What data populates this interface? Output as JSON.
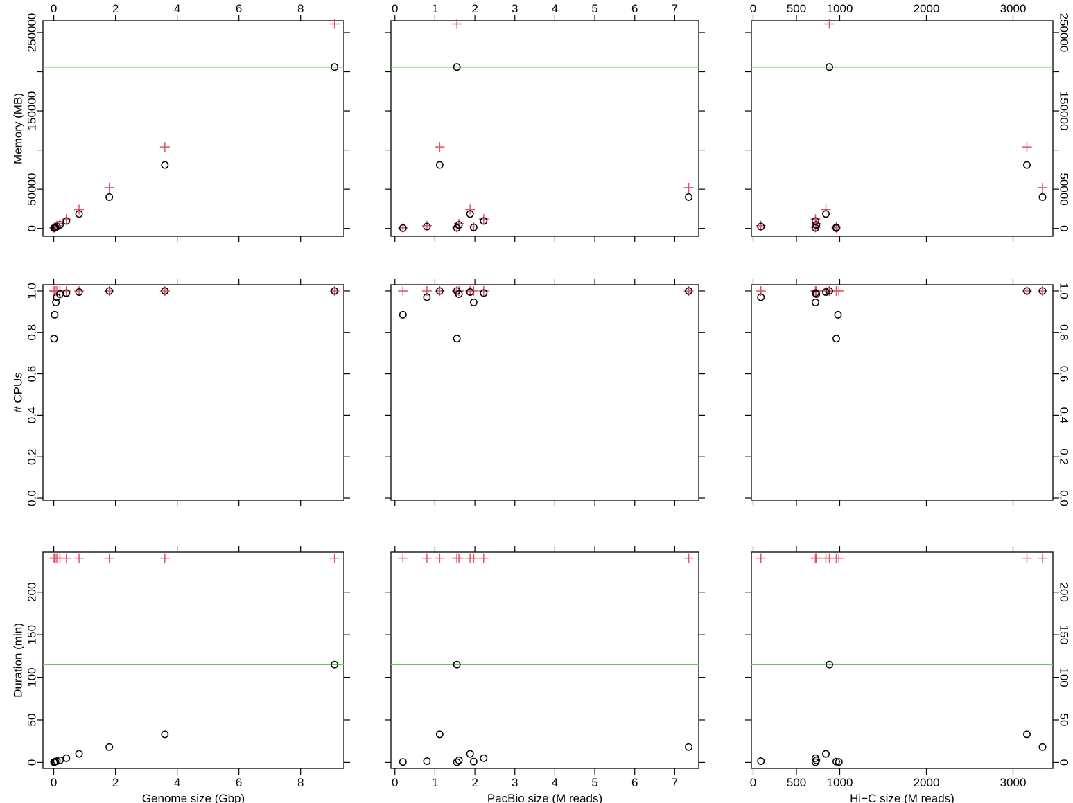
{
  "colors": {
    "memory_or_cpu_max": "#DF536B",
    "observed": "#000000",
    "reference_line": "#61D04F",
    "frame": "#000000"
  },
  "row_labels": [
    "Memory (MB)",
    "# CPUs",
    "Duration (min)"
  ],
  "column_labels": [
    "Genome size (Gbp)",
    "PacBio size (M reads)",
    "Hi−C size (M reads)"
  ],
  "chart_data": [
    {
      "type": "scatter",
      "row": 0,
      "col": 0,
      "xlim": [
        -0.35,
        9.4
      ],
      "ylim": [
        -10000,
        265000
      ],
      "x_ticks": [
        "0",
        "2",
        "4",
        "6",
        "8"
      ],
      "y_ticks": [
        "0",
        "50000",
        "150000",
        "250000"
      ],
      "y_minor_ticks": [
        100000,
        200000
      ],
      "xlabel": "",
      "ylabel": "Memory (MB)",
      "ref_line": 206000,
      "series": [
        {
          "marker": "plus",
          "color": "#DF536B",
          "points": [
            [
              9.1,
              261000
            ],
            [
              3.6,
              104000
            ],
            [
              1.8,
              52000
            ],
            [
              0.82,
              24000
            ],
            [
              0.41,
              12000
            ],
            [
              0.2,
              6000
            ],
            [
              0.1,
              3500
            ],
            [
              0.05,
              2000
            ],
            [
              0.02,
              1200
            ],
            [
              0.01,
              700
            ]
          ]
        },
        {
          "marker": "circle",
          "color": "#000000",
          "points": [
            [
              9.1,
              206000
            ],
            [
              3.6,
              81000
            ],
            [
              1.8,
              40000
            ],
            [
              0.82,
              18500
            ],
            [
              0.41,
              9500
            ],
            [
              0.2,
              4500
            ],
            [
              0.1,
              2300
            ],
            [
              0.05,
              1300
            ],
            [
              0.02,
              700
            ],
            [
              0.01,
              400
            ]
          ]
        }
      ]
    },
    {
      "type": "scatter",
      "row": 0,
      "col": 1,
      "xlim": [
        -0.1,
        7.6
      ],
      "ylim": [
        -10000,
        265000
      ],
      "x_ticks": [
        "0",
        "1",
        "2",
        "3",
        "4",
        "5",
        "6",
        "7"
      ],
      "xlabel": "",
      "ylabel": "",
      "ref_line": 206000,
      "series": [
        {
          "marker": "plus",
          "color": "#DF536B",
          "points": [
            [
              1.55,
              261000
            ],
            [
              1.12,
              104000
            ],
            [
              7.35,
              52000
            ],
            [
              1.88,
              24000
            ],
            [
              2.22,
              12000
            ],
            [
              0.8,
              3500
            ],
            [
              0.2,
              700
            ],
            [
              1.6,
              6000
            ],
            [
              1.97,
              2000
            ],
            [
              1.55,
              1200
            ]
          ]
        },
        {
          "marker": "circle",
          "color": "#000000",
          "points": [
            [
              1.55,
              206000
            ],
            [
              1.12,
              81000
            ],
            [
              7.35,
              40000
            ],
            [
              1.88,
              18500
            ],
            [
              2.22,
              9500
            ],
            [
              0.8,
              2300
            ],
            [
              0.2,
              400
            ],
            [
              1.6,
              4500
            ],
            [
              1.97,
              1300
            ],
            [
              1.55,
              700
            ]
          ]
        }
      ]
    },
    {
      "type": "scatter",
      "row": 0,
      "col": 2,
      "xlim": [
        -20,
        3460
      ],
      "ylim": [
        -10000,
        265000
      ],
      "x_ticks": [
        "0",
        "500",
        "1000",
        "2000",
        "3000"
      ],
      "y_ticks": [
        "0",
        "50000",
        "150000",
        "250000"
      ],
      "y_minor_ticks": [
        100000,
        200000
      ],
      "xlabel": "",
      "ylabel": "",
      "ref_line": 206000,
      "series": [
        {
          "marker": "plus",
          "color": "#DF536B",
          "points": [
            [
              880,
              261000
            ],
            [
              3160,
              104000
            ],
            [
              3340,
              52000
            ],
            [
              840,
              24000
            ],
            [
              720,
              12000
            ],
            [
              90,
              3500
            ],
            [
              960,
              700
            ],
            [
              730,
              6000
            ],
            [
              960,
              2000
            ],
            [
              720,
              1200
            ]
          ]
        },
        {
          "marker": "circle",
          "color": "#000000",
          "points": [
            [
              880,
              206000
            ],
            [
              3160,
              81000
            ],
            [
              3340,
              40000
            ],
            [
              840,
              18500
            ],
            [
              720,
              9500
            ],
            [
              90,
              2300
            ],
            [
              960,
              400
            ],
            [
              730,
              4500
            ],
            [
              960,
              1300
            ],
            [
              720,
              700
            ]
          ]
        }
      ]
    },
    {
      "type": "scatter",
      "row": 1,
      "col": 0,
      "xlim": [
        -0.35,
        9.4
      ],
      "ylim": [
        -0.01,
        1.03
      ],
      "x_ticks": [
        "0",
        "2",
        "4",
        "6",
        "8"
      ],
      "y_ticks": [
        "0.0",
        "0.2",
        "0.4",
        "0.6",
        "0.8",
        "1.0"
      ],
      "xlabel": "",
      "ylabel": "# CPUs",
      "series": [
        {
          "marker": "plus",
          "color": "#DF536B",
          "points": [
            [
              9.1,
              1
            ],
            [
              3.6,
              1
            ],
            [
              1.8,
              1
            ],
            [
              0.82,
              1
            ],
            [
              0.41,
              1
            ],
            [
              0.2,
              1
            ],
            [
              0.1,
              1
            ],
            [
              0.05,
              1
            ],
            [
              0.02,
              1
            ],
            [
              0.01,
              1
            ]
          ]
        },
        {
          "marker": "circle",
          "color": "#000000",
          "points": [
            [
              9.1,
              1.0
            ],
            [
              3.6,
              1.0
            ],
            [
              1.8,
              1.0
            ],
            [
              0.82,
              0.995
            ],
            [
              0.41,
              0.99
            ],
            [
              0.2,
              0.985
            ],
            [
              0.1,
              0.97
            ],
            [
              0.07,
              0.945
            ],
            [
              0.03,
              0.885
            ],
            [
              0.01,
              0.77
            ]
          ]
        }
      ]
    },
    {
      "type": "scatter",
      "row": 1,
      "col": 1,
      "xlim": [
        -0.1,
        7.6
      ],
      "ylim": [
        -0.01,
        1.03
      ],
      "x_ticks": [
        "0",
        "1",
        "2",
        "3",
        "4",
        "5",
        "6",
        "7"
      ],
      "xlabel": "",
      "ylabel": "",
      "series": [
        {
          "marker": "plus",
          "color": "#DF536B",
          "points": [
            [
              7.35,
              1
            ],
            [
              1.12,
              1
            ],
            [
              1.55,
              1
            ],
            [
              1.6,
              1
            ],
            [
              1.88,
              1
            ],
            [
              2.22,
              1
            ],
            [
              0.8,
              1
            ],
            [
              1.97,
              1
            ],
            [
              0.2,
              1
            ],
            [
              1.55,
              1
            ]
          ]
        },
        {
          "marker": "circle",
          "color": "#000000",
          "points": [
            [
              7.35,
              1.0
            ],
            [
              1.12,
              1.0
            ],
            [
              1.55,
              1.0
            ],
            [
              1.88,
              0.995
            ],
            [
              2.22,
              0.99
            ],
            [
              1.6,
              0.985
            ],
            [
              0.8,
              0.97
            ],
            [
              1.97,
              0.945
            ],
            [
              0.2,
              0.885
            ],
            [
              1.55,
              0.77
            ]
          ]
        }
      ]
    },
    {
      "type": "scatter",
      "row": 1,
      "col": 2,
      "xlim": [
        -20,
        3460
      ],
      "ylim": [
        -0.01,
        1.03
      ],
      "x_ticks": [
        "0",
        "500",
        "1000",
        "2000",
        "3000"
      ],
      "y_ticks": [
        "0.0",
        "0.2",
        "0.4",
        "0.6",
        "0.8",
        "1.0"
      ],
      "xlabel": "",
      "ylabel": "",
      "series": [
        {
          "marker": "plus",
          "color": "#DF536B",
          "points": [
            [
              3160,
              1
            ],
            [
              3340,
              1
            ],
            [
              880,
              1
            ],
            [
              840,
              1
            ],
            [
              720,
              1
            ],
            [
              730,
              1
            ],
            [
              90,
              1
            ],
            [
              960,
              1
            ],
            [
              990,
              1
            ],
            [
              720,
              1
            ]
          ]
        },
        {
          "marker": "circle",
          "color": "#000000",
          "points": [
            [
              3160,
              1.0
            ],
            [
              3340,
              1.0
            ],
            [
              880,
              1.0
            ],
            [
              840,
              0.995
            ],
            [
              720,
              0.99
            ],
            [
              730,
              0.985
            ],
            [
              90,
              0.97
            ],
            [
              720,
              0.945
            ],
            [
              980,
              0.885
            ],
            [
              960,
              0.77
            ]
          ]
        }
      ]
    },
    {
      "type": "scatter",
      "row": 2,
      "col": 0,
      "xlim": [
        -0.35,
        9.4
      ],
      "ylim": [
        -7,
        247
      ],
      "x_ticks": [
        "0",
        "2",
        "4",
        "6",
        "8"
      ],
      "y_ticks": [
        "0",
        "50",
        "100",
        "150",
        "200"
      ],
      "xlabel": "Genome size (Gbp)",
      "ylabel": "Duration (min)",
      "ref_line": 115,
      "series": [
        {
          "marker": "plus",
          "color": "#DF536B",
          "points": [
            [
              9.1,
              240
            ],
            [
              3.6,
              240
            ],
            [
              1.8,
              240
            ],
            [
              0.82,
              240
            ],
            [
              0.41,
              240
            ],
            [
              0.2,
              240
            ],
            [
              0.1,
              240
            ],
            [
              0.05,
              240
            ],
            [
              0.02,
              240
            ],
            [
              0.01,
              240
            ]
          ]
        },
        {
          "marker": "circle",
          "color": "#000000",
          "points": [
            [
              9.1,
              115
            ],
            [
              3.6,
              33
            ],
            [
              1.8,
              18
            ],
            [
              0.82,
              10
            ],
            [
              0.41,
              5
            ],
            [
              0.2,
              2.5
            ],
            [
              0.1,
              1.5
            ],
            [
              0.05,
              1
            ],
            [
              0.02,
              0.6
            ],
            [
              0.01,
              0.3
            ]
          ]
        }
      ]
    },
    {
      "type": "scatter",
      "row": 2,
      "col": 1,
      "xlim": [
        -0.1,
        7.6
      ],
      "ylim": [
        -7,
        247
      ],
      "x_ticks": [
        "0",
        "1",
        "2",
        "3",
        "4",
        "5",
        "6",
        "7"
      ],
      "xlabel": "PacBio size (M reads)",
      "ylabel": "",
      "ref_line": 115,
      "series": [
        {
          "marker": "plus",
          "color": "#DF536B",
          "points": [
            [
              0.2,
              240
            ],
            [
              0.8,
              240
            ],
            [
              1.12,
              240
            ],
            [
              1.55,
              240
            ],
            [
              1.6,
              240
            ],
            [
              1.88,
              240
            ],
            [
              1.97,
              240
            ],
            [
              2.22,
              240
            ],
            [
              7.35,
              240
            ],
            [
              1.55,
              240
            ]
          ]
        },
        {
          "marker": "circle",
          "color": "#000000",
          "points": [
            [
              1.55,
              115
            ],
            [
              1.12,
              33
            ],
            [
              7.35,
              18
            ],
            [
              1.88,
              10
            ],
            [
              2.22,
              5
            ],
            [
              1.6,
              2.5
            ],
            [
              0.8,
              1.5
            ],
            [
              1.97,
              1
            ],
            [
              0.2,
              0.6
            ],
            [
              1.55,
              0.3
            ]
          ]
        }
      ]
    },
    {
      "type": "scatter",
      "row": 2,
      "col": 2,
      "xlim": [
        -20,
        3460
      ],
      "ylim": [
        -7,
        247
      ],
      "x_ticks": [
        "0",
        "500",
        "1000",
        "2000",
        "3000"
      ],
      "y_ticks": [
        "0",
        "50",
        "100",
        "150",
        "200"
      ],
      "xlabel": "Hi−C size (M reads)",
      "ylabel": "",
      "ref_line": 115,
      "series": [
        {
          "marker": "plus",
          "color": "#DF536B",
          "points": [
            [
              90,
              240
            ],
            [
              720,
              240
            ],
            [
              730,
              240
            ],
            [
              840,
              240
            ],
            [
              880,
              240
            ],
            [
              960,
              240
            ],
            [
              990,
              240
            ],
            [
              3160,
              240
            ],
            [
              3340,
              240
            ],
            [
              720,
              240
            ]
          ]
        },
        {
          "marker": "circle",
          "color": "#000000",
          "points": [
            [
              880,
              115
            ],
            [
              3160,
              33
            ],
            [
              3340,
              18
            ],
            [
              840,
              10
            ],
            [
              720,
              5
            ],
            [
              730,
              2.5
            ],
            [
              90,
              1.5
            ],
            [
              960,
              1
            ],
            [
              990,
              0.6
            ],
            [
              720,
              0.3
            ]
          ]
        }
      ]
    }
  ]
}
